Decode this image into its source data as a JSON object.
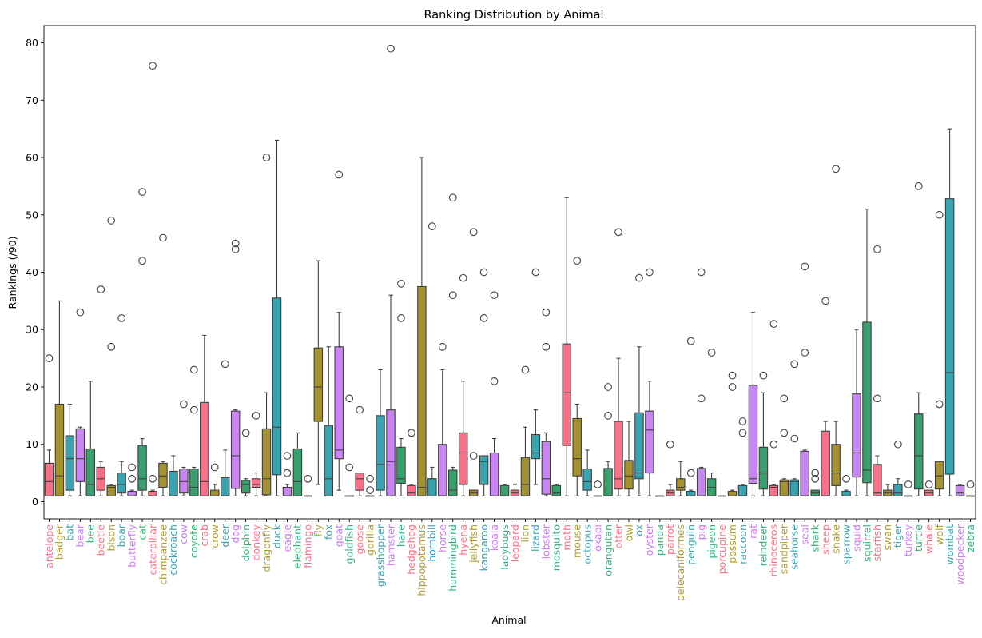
{
  "chart_data": {
    "type": "box",
    "title": "Ranking Distribution by Animal",
    "xlabel": "Animal",
    "ylabel": "Rankings (/90)",
    "ylim": [
      -3,
      83
    ],
    "yticks": [
      0,
      10,
      20,
      30,
      40,
      50,
      60,
      70,
      80
    ],
    "grid": false,
    "legend": "none",
    "palette": [
      "#f77189",
      "#a39132",
      "#3ba3b0",
      "#c886f0",
      "#3a9e6e"
    ],
    "label_palette": [
      "#f77189",
      "#ae9d31",
      "#3ba3b0",
      "#cc7af4",
      "#33b07a"
    ],
    "categories": [
      {
        "name": "antelope",
        "q1": 1,
        "median": 3.5,
        "q3": 6.7,
        "lo": 1,
        "hi": 9,
        "outliers": [
          25
        ]
      },
      {
        "name": "badger",
        "q1": 1,
        "median": 4.5,
        "q3": 17,
        "lo": 1,
        "hi": 35,
        "outliers": []
      },
      {
        "name": "bat",
        "q1": 2,
        "median": 7.5,
        "q3": 11.5,
        "lo": 1,
        "hi": 17,
        "outliers": []
      },
      {
        "name": "bear",
        "q1": 3.5,
        "median": 7.5,
        "q3": 12.7,
        "lo": 1,
        "hi": 13,
        "outliers": [
          33
        ]
      },
      {
        "name": "bee",
        "q1": 1,
        "median": 3,
        "q3": 9.2,
        "lo": 1,
        "hi": 21,
        "outliers": []
      },
      {
        "name": "beetle",
        "q1": 2,
        "median": 4,
        "q3": 6,
        "lo": 1,
        "hi": 7,
        "outliers": [
          37
        ]
      },
      {
        "name": "bison",
        "q1": 1,
        "median": 2.5,
        "q3": 2.8,
        "lo": 1,
        "hi": 3,
        "outliers": [
          27,
          49
        ]
      },
      {
        "name": "boar",
        "q1": 1.5,
        "median": 3,
        "q3": 5,
        "lo": 1,
        "hi": 7,
        "outliers": [
          32
        ]
      },
      {
        "name": "butterfly",
        "q1": 1,
        "median": 1,
        "q3": 1.8,
        "lo": 1,
        "hi": 2,
        "outliers": [
          4,
          6
        ]
      },
      {
        "name": "cat",
        "q1": 2,
        "median": 4,
        "q3": 9.8,
        "lo": 1,
        "hi": 11,
        "outliers": [
          42,
          54
        ]
      },
      {
        "name": "caterpillar",
        "q1": 1,
        "median": 1,
        "q3": 1.8,
        "lo": 1,
        "hi": 2,
        "outliers": [
          4,
          76
        ]
      },
      {
        "name": "chimpanzee",
        "q1": 2.5,
        "median": 4.5,
        "q3": 6.7,
        "lo": 1,
        "hi": 7,
        "outliers": [
          46
        ]
      },
      {
        "name": "cockroach",
        "q1": 1,
        "median": 1,
        "q3": 5.3,
        "lo": 1,
        "hi": 8,
        "outliers": []
      },
      {
        "name": "cow",
        "q1": 1.5,
        "median": 3.5,
        "q3": 5.7,
        "lo": 1,
        "hi": 6,
        "outliers": [
          17
        ]
      },
      {
        "name": "coyote",
        "q1": 1,
        "median": 2.5,
        "q3": 5.7,
        "lo": 1,
        "hi": 6,
        "outliers": [
          16,
          23
        ]
      },
      {
        "name": "crab",
        "q1": 1,
        "median": 3.5,
        "q3": 17.3,
        "lo": 1,
        "hi": 29,
        "outliers": []
      },
      {
        "name": "crow",
        "q1": 1,
        "median": 1,
        "q3": 2,
        "lo": 1,
        "hi": 3,
        "outliers": [
          6
        ]
      },
      {
        "name": "deer",
        "q1": 1,
        "median": 1,
        "q3": 4.2,
        "lo": 1,
        "hi": 9,
        "outliers": [
          24
        ]
      },
      {
        "name": "dog",
        "q1": 2.3,
        "median": 8,
        "q3": 15.8,
        "lo": 1,
        "hi": 16,
        "outliers": [
          44,
          45
        ]
      },
      {
        "name": "dolphin",
        "q1": 1.5,
        "median": 3,
        "q3": 3.7,
        "lo": 1,
        "hi": 4,
        "outliers": [
          12
        ]
      },
      {
        "name": "donkey",
        "q1": 2.5,
        "median": 3,
        "q3": 4,
        "lo": 1,
        "hi": 5,
        "outliers": [
          15
        ]
      },
      {
        "name": "dragonfly",
        "q1": 1.2,
        "median": 4,
        "q3": 12.7,
        "lo": 1,
        "hi": 19,
        "outliers": [
          60
        ]
      },
      {
        "name": "duck",
        "q1": 4.7,
        "median": 13,
        "q3": 35.5,
        "lo": 1,
        "hi": 63,
        "outliers": []
      },
      {
        "name": "eagle",
        "q1": 1,
        "median": 1,
        "q3": 2.5,
        "lo": 1,
        "hi": 3,
        "outliers": [
          5,
          8
        ]
      },
      {
        "name": "elephant",
        "q1": 1,
        "median": 3.5,
        "q3": 9.2,
        "lo": 1,
        "hi": 12,
        "outliers": []
      },
      {
        "name": "flamingo",
        "q1": 1,
        "median": 1,
        "q3": 1,
        "lo": 1,
        "hi": 1,
        "outliers": [
          4
        ]
      },
      {
        "name": "fly",
        "q1": 14,
        "median": 20,
        "q3": 26.8,
        "lo": 3,
        "hi": 42,
        "outliers": []
      },
      {
        "name": "fox",
        "q1": 1,
        "median": 4,
        "q3": 13.3,
        "lo": 1,
        "hi": 27,
        "outliers": []
      },
      {
        "name": "goat",
        "q1": 7.5,
        "median": 9,
        "q3": 27,
        "lo": 2,
        "hi": 33,
        "outliers": [
          57
        ]
      },
      {
        "name": "goldfish",
        "q1": 1,
        "median": 1,
        "q3": 1,
        "lo": 1,
        "hi": 1,
        "outliers": [
          6,
          18
        ]
      },
      {
        "name": "goose",
        "q1": 2,
        "median": 4,
        "q3": 5,
        "lo": 1,
        "hi": 5,
        "outliers": [
          16
        ]
      },
      {
        "name": "gorilla",
        "q1": 1,
        "median": 1,
        "q3": 1,
        "lo": 1,
        "hi": 1,
        "outliers": [
          2,
          4
        ]
      },
      {
        "name": "grasshopper",
        "q1": 2,
        "median": 6.5,
        "q3": 15,
        "lo": 1,
        "hi": 23,
        "outliers": []
      },
      {
        "name": "hamster",
        "q1": 1,
        "median": 7,
        "q3": 16,
        "lo": 1,
        "hi": 36,
        "outliers": [
          79
        ]
      },
      {
        "name": "hare",
        "q1": 3.2,
        "median": 4,
        "q3": 9.5,
        "lo": 1,
        "hi": 11,
        "outliers": [
          32,
          38
        ]
      },
      {
        "name": "hedgehog",
        "q1": 1,
        "median": 1.5,
        "q3": 2.8,
        "lo": 1,
        "hi": 3,
        "outliers": [
          12
        ]
      },
      {
        "name": "hippopotamus",
        "q1": 1,
        "median": 2.5,
        "q3": 37.5,
        "lo": 1,
        "hi": 60,
        "outliers": []
      },
      {
        "name": "hornbill",
        "q1": 1,
        "median": 4,
        "q3": 4,
        "lo": 1,
        "hi": 6,
        "outliers": [
          48
        ]
      },
      {
        "name": "horse",
        "q1": 1,
        "median": 1,
        "q3": 10,
        "lo": 1,
        "hi": 23,
        "outliers": [
          27
        ]
      },
      {
        "name": "hummingbird",
        "q1": 1,
        "median": 2,
        "q3": 5.5,
        "lo": 1,
        "hi": 6,
        "outliers": [
          36,
          53
        ]
      },
      {
        "name": "hyena",
        "q1": 3,
        "median": 8.5,
        "q3": 12,
        "lo": 1,
        "hi": 21,
        "outliers": [
          39
        ]
      },
      {
        "name": "jellyfish",
        "q1": 1,
        "median": 1.5,
        "q3": 2,
        "lo": 1,
        "hi": 2,
        "outliers": [
          8,
          47
        ]
      },
      {
        "name": "kangaroo",
        "q1": 3,
        "median": 7,
        "q3": 8,
        "lo": 1,
        "hi": 8,
        "outliers": [
          32,
          40
        ]
      },
      {
        "name": "koala",
        "q1": 1,
        "median": 1,
        "q3": 8.5,
        "lo": 1,
        "hi": 11,
        "outliers": [
          21,
          36
        ]
      },
      {
        "name": "ladybugs",
        "q1": 1,
        "median": 1,
        "q3": 2.8,
        "lo": 1,
        "hi": 3,
        "outliers": []
      },
      {
        "name": "leopard",
        "q1": 1,
        "median": 1.5,
        "q3": 2,
        "lo": 1,
        "hi": 3,
        "outliers": []
      },
      {
        "name": "lion",
        "q1": 1,
        "median": 3,
        "q3": 7.7,
        "lo": 1,
        "hi": 13,
        "outliers": [
          23
        ]
      },
      {
        "name": "lizard",
        "q1": 7.5,
        "median": 8.5,
        "q3": 11.7,
        "lo": 3,
        "hi": 16,
        "outliers": [
          40
        ]
      },
      {
        "name": "lobster",
        "q1": 1.3,
        "median": 4,
        "q3": 10.5,
        "lo": 1,
        "hi": 12,
        "outliers": [
          27,
          33
        ]
      },
      {
        "name": "mosquito",
        "q1": 1,
        "median": 1.5,
        "q3": 2.8,
        "lo": 1,
        "hi": 3,
        "outliers": []
      },
      {
        "name": "moth",
        "q1": 9.8,
        "median": 19,
        "q3": 27.5,
        "lo": 1,
        "hi": 53,
        "outliers": []
      },
      {
        "name": "mouse",
        "q1": 4.5,
        "median": 7.5,
        "q3": 14.5,
        "lo": 1,
        "hi": 17,
        "outliers": [
          42
        ]
      },
      {
        "name": "octopus",
        "q1": 2,
        "median": 3.5,
        "q3": 5.7,
        "lo": 1,
        "hi": 9,
        "outliers": []
      },
      {
        "name": "okapi",
        "q1": 1,
        "median": 1,
        "q3": 1,
        "lo": 1,
        "hi": 1,
        "outliers": [
          3
        ]
      },
      {
        "name": "orangutan",
        "q1": 1,
        "median": 1,
        "q3": 5.8,
        "lo": 1,
        "hi": 7,
        "outliers": [
          15,
          20
        ]
      },
      {
        "name": "otter",
        "q1": 2.2,
        "median": 4,
        "q3": 14,
        "lo": 1,
        "hi": 25,
        "outliers": [
          47
        ]
      },
      {
        "name": "owl",
        "q1": 2.2,
        "median": 4.5,
        "q3": 7.2,
        "lo": 1,
        "hi": 14,
        "outliers": []
      },
      {
        "name": "ox",
        "q1": 4,
        "median": 5,
        "q3": 15.5,
        "lo": 1,
        "hi": 27,
        "outliers": [
          39
        ]
      },
      {
        "name": "oyster",
        "q1": 5,
        "median": 12.5,
        "q3": 15.8,
        "lo": 1,
        "hi": 21,
        "outliers": [
          40
        ]
      },
      {
        "name": "panda",
        "q1": 1,
        "median": 1,
        "q3": 1,
        "lo": 1,
        "hi": 1,
        "outliers": []
      },
      {
        "name": "parrot",
        "q1": 1,
        "median": 1.5,
        "q3": 2,
        "lo": 1,
        "hi": 3,
        "outliers": [
          10
        ]
      },
      {
        "name": "pelecaniformes",
        "q1": 2,
        "median": 2.5,
        "q3": 4,
        "lo": 1,
        "hi": 7,
        "outliers": []
      },
      {
        "name": "penguin",
        "q1": 1,
        "median": 1,
        "q3": 1.8,
        "lo": 1,
        "hi": 2,
        "outliers": [
          5,
          28
        ]
      },
      {
        "name": "pig",
        "q1": 1,
        "median": 1,
        "q3": 5.8,
        "lo": 1,
        "hi": 6,
        "outliers": [
          18,
          40
        ]
      },
      {
        "name": "pigeon",
        "q1": 1,
        "median": 2.5,
        "q3": 4,
        "lo": 1,
        "hi": 5,
        "outliers": [
          26
        ]
      },
      {
        "name": "porcupine",
        "q1": 1,
        "median": 1,
        "q3": 1,
        "lo": 1,
        "hi": 1,
        "outliers": []
      },
      {
        "name": "possum",
        "q1": 1,
        "median": 1,
        "q3": 1.8,
        "lo": 1,
        "hi": 2,
        "outliers": [
          20,
          22
        ]
      },
      {
        "name": "raccoon",
        "q1": 1,
        "median": 1,
        "q3": 2.8,
        "lo": 1,
        "hi": 3,
        "outliers": [
          12,
          14
        ]
      },
      {
        "name": "rat",
        "q1": 3.2,
        "median": 4,
        "q3": 20.3,
        "lo": 1,
        "hi": 33,
        "outliers": []
      },
      {
        "name": "reindeer",
        "q1": 2.2,
        "median": 5,
        "q3": 9.5,
        "lo": 1,
        "hi": 19,
        "outliers": [
          22
        ]
      },
      {
        "name": "rhinoceros",
        "q1": 1,
        "median": 2.5,
        "q3": 2.8,
        "lo": 1,
        "hi": 3,
        "outliers": [
          10,
          31
        ]
      },
      {
        "name": "sandpiper",
        "q1": 1,
        "median": 3.5,
        "q3": 3.8,
        "lo": 1,
        "hi": 4,
        "outliers": [
          12,
          18
        ]
      },
      {
        "name": "seahorse",
        "q1": 1,
        "median": 3.5,
        "q3": 3.8,
        "lo": 1,
        "hi": 4,
        "outliers": [
          11,
          24
        ]
      },
      {
        "name": "seal",
        "q1": 1,
        "median": 1,
        "q3": 8.8,
        "lo": 1,
        "hi": 9,
        "outliers": [
          26,
          41
        ]
      },
      {
        "name": "shark",
        "q1": 1,
        "median": 1.5,
        "q3": 2,
        "lo": 1,
        "hi": 2,
        "outliers": [
          4,
          5
        ]
      },
      {
        "name": "sheep",
        "q1": 1,
        "median": 1,
        "q3": 12.3,
        "lo": 1,
        "hi": 14,
        "outliers": [
          35
        ]
      },
      {
        "name": "snake",
        "q1": 2.8,
        "median": 5,
        "q3": 10,
        "lo": 1,
        "hi": 14,
        "outliers": [
          58
        ]
      },
      {
        "name": "sparrow",
        "q1": 1,
        "median": 1,
        "q3": 1.8,
        "lo": 1,
        "hi": 2,
        "outliers": [
          4
        ]
      },
      {
        "name": "squid",
        "q1": 4.3,
        "median": 8.5,
        "q3": 18.8,
        "lo": 1,
        "hi": 30,
        "outliers": []
      },
      {
        "name": "squirrel",
        "q1": 3.3,
        "median": 5.5,
        "q3": 31.3,
        "lo": 1,
        "hi": 51,
        "outliers": []
      },
      {
        "name": "starfish",
        "q1": 1,
        "median": 1.5,
        "q3": 6.5,
        "lo": 1,
        "hi": 8,
        "outliers": [
          18,
          44
        ]
      },
      {
        "name": "swan",
        "q1": 1,
        "median": 1.5,
        "q3": 2,
        "lo": 1,
        "hi": 3,
        "outliers": []
      },
      {
        "name": "tiger",
        "q1": 1,
        "median": 1.5,
        "q3": 3,
        "lo": 1,
        "hi": 4,
        "outliers": [
          10
        ]
      },
      {
        "name": "turkey",
        "q1": 1,
        "median": 1,
        "q3": 1,
        "lo": 1,
        "hi": 1,
        "outliers": [
          3
        ]
      },
      {
        "name": "turtle",
        "q1": 2.2,
        "median": 8,
        "q3": 15.3,
        "lo": 1,
        "hi": 19,
        "outliers": [
          55
        ]
      },
      {
        "name": "whale",
        "q1": 1,
        "median": 1.5,
        "q3": 2,
        "lo": 1,
        "hi": 2,
        "outliers": [
          3
        ]
      },
      {
        "name": "wolf",
        "q1": 2.2,
        "median": 4.5,
        "q3": 7,
        "lo": 1,
        "hi": 7,
        "outliers": [
          17,
          50
        ]
      },
      {
        "name": "wombat",
        "q1": 4.8,
        "median": 22.5,
        "q3": 52.8,
        "lo": 1,
        "hi": 65,
        "outliers": []
      },
      {
        "name": "woodpecker",
        "q1": 1,
        "median": 1.5,
        "q3": 2.8,
        "lo": 1,
        "hi": 3,
        "outliers": []
      },
      {
        "name": "zebra",
        "q1": 1,
        "median": 1,
        "q3": 1,
        "lo": 1,
        "hi": 1,
        "outliers": [
          3
        ]
      }
    ]
  }
}
